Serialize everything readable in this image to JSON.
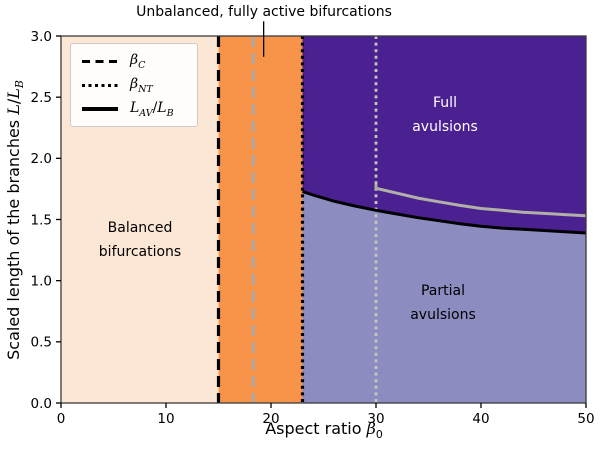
{
  "figure": {
    "annotation_text": "Unbalanced, fully active bifurcations",
    "region_labels": [
      {
        "id": "balanced",
        "text": "Balanced\nbifurcations",
        "color": "#000000"
      },
      {
        "id": "full",
        "text": "Full\navulsions",
        "color": "#ffffff"
      },
      {
        "id": "partial",
        "text": "Partial\navulsions",
        "color": "#000000"
      }
    ]
  },
  "chart_data": {
    "type": "area",
    "title": "Unbalanced, fully active bifurcations",
    "xlabel_rich": [
      {
        "t": "Aspect ratio "
      },
      {
        "t": "β",
        "i": true
      },
      {
        "t": "0",
        "sub": true
      }
    ],
    "ylabel_rich": [
      {
        "t": "Scaled length of the branches "
      },
      {
        "t": "L",
        "i": true
      },
      {
        "t": "/"
      },
      {
        "t": "L",
        "i": true
      },
      {
        "t": "B",
        "sub": true,
        "i": true
      }
    ],
    "xlim": [
      0,
      50
    ],
    "ylim": [
      0,
      3
    ],
    "grid": false,
    "xticks": [
      {
        "v": 0,
        "label": "0"
      },
      {
        "v": 10,
        "label": "10"
      },
      {
        "v": 20,
        "label": "20"
      },
      {
        "v": 30,
        "label": "30"
      },
      {
        "v": 40,
        "label": "40"
      },
      {
        "v": 50,
        "label": "50"
      }
    ],
    "yticks": [
      {
        "v": 0,
        "label": "0.0"
      },
      {
        "v": 0.5,
        "label": "0.5"
      },
      {
        "v": 1,
        "label": "1.0"
      },
      {
        "v": 1.5,
        "label": "1.5"
      },
      {
        "v": 2,
        "label": "2.0"
      },
      {
        "v": 2.5,
        "label": "2.5"
      },
      {
        "v": 3,
        "label": "3.0"
      }
    ],
    "regions": [
      {
        "id": "balanced-bifurcations",
        "label": "Balanced bifurcations",
        "x0": 0,
        "x1": 15,
        "color": "#FCE7D5"
      },
      {
        "id": "unbalanced-fully-active",
        "label": "Unbalanced, fully active bifurcations",
        "x0": 15,
        "x1": 23,
        "color": "#F8944A"
      },
      {
        "id": "partial-avulsions",
        "label": "Partial avulsions",
        "x0": 23,
        "x1": 50,
        "color": "#8C8CC0"
      },
      {
        "id": "full-avulsions",
        "label": "Full avulsions",
        "x0": 23,
        "x1": 50,
        "above_curve": "lav-boundary",
        "color": "#4B2090"
      }
    ],
    "vlines": [
      {
        "id": "beta-c",
        "x": 15,
        "style": "dashed",
        "color": "#000000",
        "label": "β_C"
      },
      {
        "id": "gray-dashed",
        "x": 18.3,
        "style": "dashed",
        "color": "#A8A8A8"
      },
      {
        "id": "beta-nt",
        "x": 23,
        "style": "dotted",
        "color": "#000000",
        "label": "β_NT"
      },
      {
        "id": "gray-dotted",
        "x": 30,
        "style": "dotted",
        "color": "#C9C6B9"
      }
    ],
    "curves": [
      {
        "id": "lav-boundary",
        "label": "L_AV/L_B",
        "color": "#000000",
        "x": [
          23,
          24,
          26,
          28,
          30,
          32,
          34,
          36,
          38,
          40,
          42,
          44,
          46,
          48,
          50
        ],
        "y": [
          1.73,
          1.7,
          1.65,
          1.61,
          1.575,
          1.545,
          1.515,
          1.49,
          1.465,
          1.445,
          1.43,
          1.42,
          1.41,
          1.4,
          1.39
        ]
      },
      {
        "id": "gray-comparison",
        "label": "",
        "color": "#B0B0A8",
        "x": [
          30,
          30,
          32,
          34,
          36,
          38,
          40,
          42,
          44,
          46,
          48,
          50
        ],
        "y": [
          1.79,
          1.755,
          1.715,
          1.675,
          1.645,
          1.615,
          1.59,
          1.575,
          1.56,
          1.55,
          1.54,
          1.53
        ]
      }
    ],
    "annotation": {
      "text": "Unbalanced, fully active bifurcations",
      "x": 19.3,
      "line_from_L": 3.12,
      "line_to_L": 2.83
    },
    "legend": {
      "position": "upper left",
      "entries": [
        {
          "style": "dashed",
          "label_rich": [
            {
              "t": "β",
              "i": true
            },
            {
              "t": "C",
              "sub": true,
              "i": true
            }
          ]
        },
        {
          "style": "dotted",
          "label_rich": [
            {
              "t": "β",
              "i": true
            },
            {
              "t": "NT",
              "sub": true,
              "i": true
            }
          ]
        },
        {
          "style": "solid",
          "label_rich": [
            {
              "t": "L",
              "i": true
            },
            {
              "t": "AV",
              "sub": true,
              "i": true
            },
            {
              "t": "/"
            },
            {
              "t": "L",
              "i": true
            },
            {
              "t": "B",
              "sub": true,
              "i": true
            }
          ]
        }
      ]
    },
    "colors": {
      "balanced": "#FCE7D5",
      "unbalanced": "#F8944A",
      "full_avulsions": "#4B2090",
      "partial_avulsions": "#8C8CC0",
      "black_line": "#000000",
      "gray_dashed": "#A8A8A8",
      "gray_dotted": "#C9C6B9",
      "gray_curve": "#B0B0A8",
      "spine": "#3a3a3a"
    }
  }
}
